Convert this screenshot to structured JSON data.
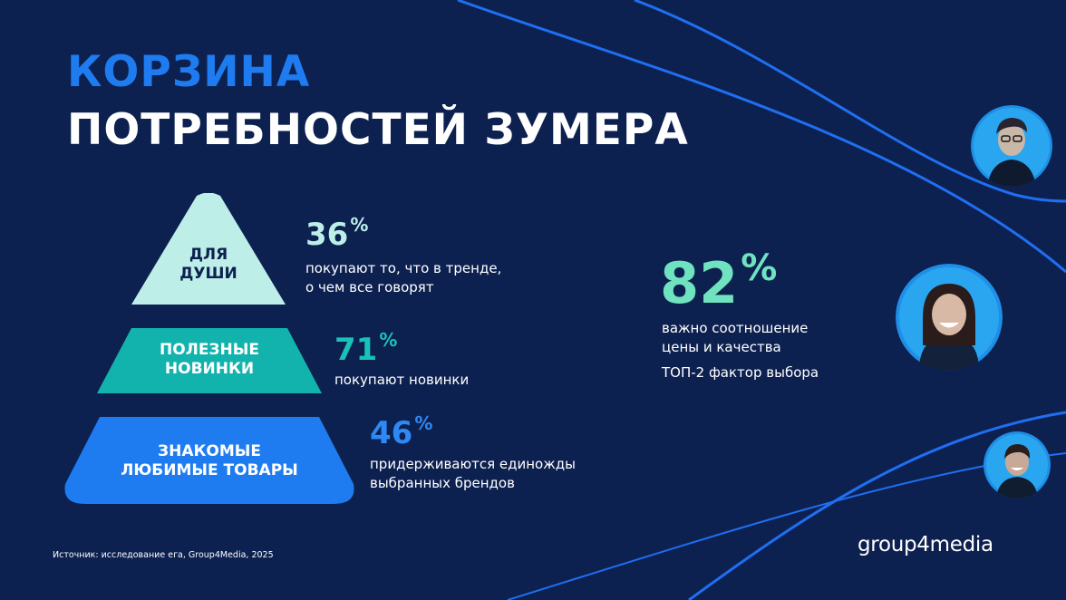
{
  "title": {
    "line1": "КОРЗИНА",
    "line2": "ПОТРЕБНОСТЕЙ ЗУМЕРА"
  },
  "pyramid": [
    {
      "label_lines": [
        "ДЛЯ",
        "ДУШИ"
      ],
      "percent": "36",
      "percent_sign": "%",
      "description_lines": [
        "покупают то, что в тренде,",
        "о чем все говорят"
      ],
      "color": "#bdeee8",
      "label_color": "#0d2150",
      "percent_color": "#bdeee8"
    },
    {
      "label_lines": [
        "ПОЛЕЗНЫЕ",
        "НОВИНКИ"
      ],
      "percent": "71",
      "percent_sign": "%",
      "description_lines": [
        "покупают новинки"
      ],
      "color": "#13b3ad",
      "label_color": "#ffffff",
      "percent_color": "#19c2b8"
    },
    {
      "label_lines": [
        "ЗНАКОМЫЕ",
        "ЛЮБИМЫЕ ТОВАРЫ"
      ],
      "percent": "46",
      "percent_sign": "%",
      "description_lines": [
        "придерживаются единожды",
        "выбранных брендов"
      ],
      "color": "#1e7cf0",
      "label_color": "#ffffff",
      "percent_color": "#2e88f5"
    }
  ],
  "highlight": {
    "percent": "82",
    "percent_sign": "%",
    "description_lines": [
      "важно соотношение",
      "цены и качества"
    ],
    "note": "ТОП-2 фактор выбора"
  },
  "avatars": [
    {
      "icon": "person-avatar-icon",
      "description": "young man with glasses"
    },
    {
      "icon": "person-avatar-icon",
      "description": "smiling young woman"
    },
    {
      "icon": "person-avatar-icon",
      "description": "smiling young man"
    }
  ],
  "source": "Источник: исследование ега, Group4Media, 2025",
  "logo": "group4media",
  "colors": {
    "background": "#0d2150",
    "accent_blue": "#1e7cf0",
    "accent_mint": "#6fe3bf",
    "line_blue": "#1f6ff2"
  }
}
